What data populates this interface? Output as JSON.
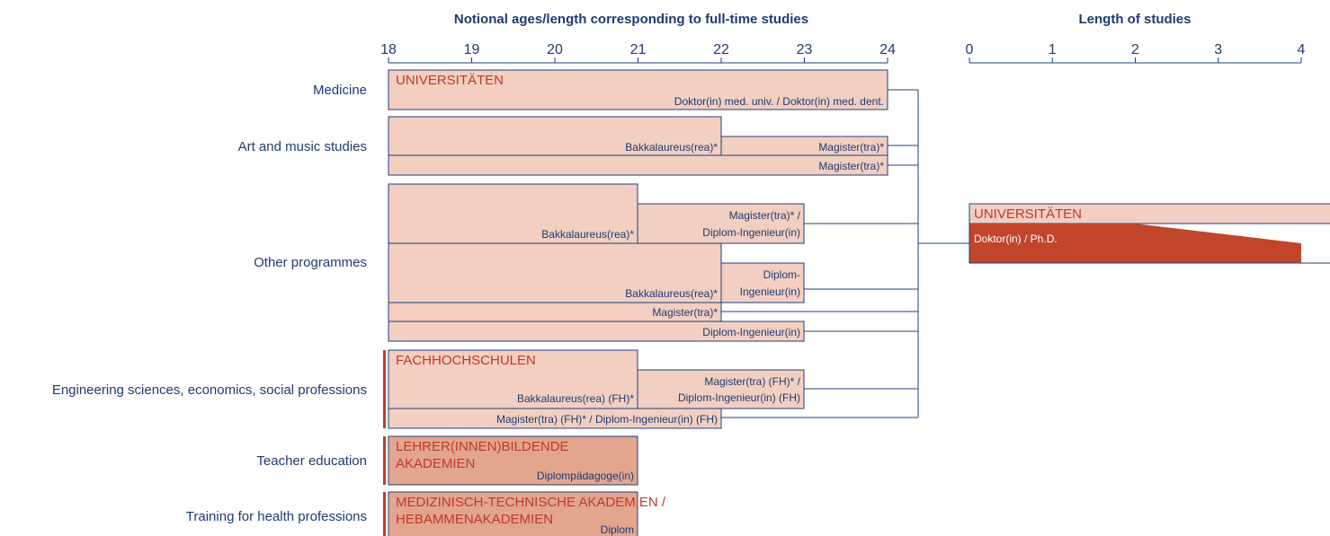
{
  "header": {
    "left_title": "Notional ages/length corresponding to full-time studies",
    "right_title": "Length of studies"
  },
  "age_axis": [
    18,
    19,
    20,
    21,
    22,
    23,
    24
  ],
  "length_axis": [
    0,
    1,
    2,
    3,
    4
  ],
  "rows": [
    "Medicine",
    "Art and music studies",
    "Other programmes",
    "Engineering sciences, economics, social professions",
    "Teacher education",
    "Training for health professions"
  ],
  "institutions": {
    "universities": "UNIVERSITÄTEN",
    "fh": "FACHHOCHSCHULEN",
    "teacher": [
      "LEHRER(INNEN)BILDENDE",
      "AKADEMIEN"
    ],
    "health": [
      "MEDIZINISCH-TECHNISCHE AKADEMIEN /",
      "HEBAMMENAKADEMIEN"
    ],
    "doctoral": "UNIVERSITÄTEN"
  },
  "programmes": {
    "medicine": "Doktor(in) med. univ. / Doktor(in) med. dent.",
    "art_bachelor": "Bakkalaureus(rea)*",
    "art_master": "Magister(tra)*",
    "art_long": "Magister(tra)*",
    "other_bachelor_1": "Bakkalaureus(rea)*",
    "other_master_1": [
      "Magister(tra)* /",
      "Diplom-Ingenieur(in)"
    ],
    "other_bachelor_2": "Bakkalaureus(rea)*",
    "other_diplom_2": [
      "Diplom-",
      "Ingenieur(in)"
    ],
    "other_master_long": "Magister(tra)*",
    "other_diplom_long": "Diplom-Ingenieur(in)",
    "fh_bachelor": "Bakkalaureus(rea) (FH)*",
    "fh_master": [
      "Magister(tra) (FH)* /",
      "Diplom-Ingenieur(in) (FH)"
    ],
    "fh_long": "Magister(tra) (FH)* / Diplom-Ingenieur(in) (FH)",
    "teacher": "Diplompädagoge(in)",
    "health": "Diplom",
    "doctoral": "Doktor(in) / Ph.D.",
    "doctoral_length": "(2 -"
  }
}
